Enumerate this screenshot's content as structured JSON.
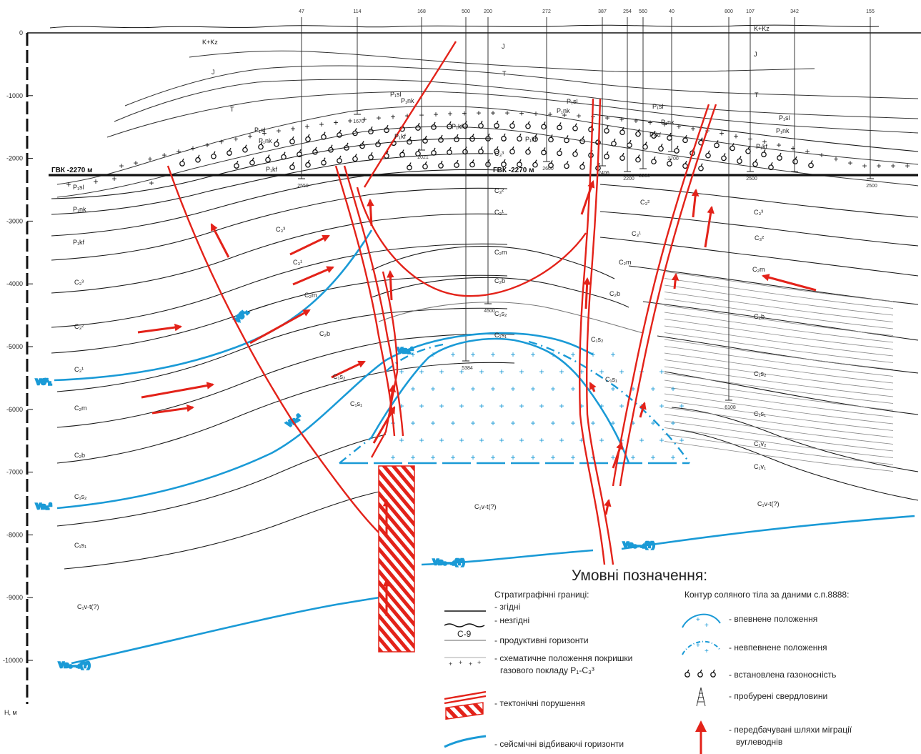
{
  "axis": {
    "depth_unit": "Н, м",
    "ticks": [
      "0",
      "-1000",
      "-2000",
      "-3000",
      "-4000",
      "-5000",
      "-6000",
      "-7000",
      "-8000",
      "-9000",
      "-10000"
    ]
  },
  "wells": [
    "47",
    "114",
    "168",
    "500",
    "200",
    "272",
    "387",
    "254",
    "560",
    "40",
    "800",
    "107",
    "342",
    "155"
  ],
  "well_bottoms": [
    "2550",
    "1670",
    "2021",
    "5384",
    "4500",
    "2600",
    "2406",
    "2200",
    "2230",
    "2700",
    "6108",
    "2500",
    "2500"
  ],
  "gvk": {
    "left": "ГВК -2270 м",
    "center": "ГВК -2270 м"
  },
  "strata": {
    "kkz_left": "K+Kz",
    "kkz_right": "K+Kz",
    "j_left": "J",
    "j_center": "J",
    "j_right": "J",
    "t_left": "T",
    "t_center": "T",
    "t_right": "T",
    "p1sl_a": "P₁sl",
    "p1nk_a": "P₁nk",
    "p1kf_a": "P₁kf",
    "p1sl_b": "P₁sl",
    "p1nk_b": "P₁nk",
    "p1kf_b": "P₁kf",
    "p1sl_c": "P₁sl",
    "p1nk_c": "P₁nk",
    "p1kf_c": "P₁kf",
    "p1sl_d": "P₁sl",
    "p1nk_d": "P₁nk",
    "p1kf_d": "P₁kf",
    "p1sl_e": "P₁sl",
    "p1nk_e": "P₁nk",
    "p1kf_e": "P₁kf",
    "p1sl_f": "P₁sl",
    "p1nk_f": "P₁nk",
    "p1sl_g": "P₁sl",
    "c3_1": "C₃³",
    "c3_2": "C₃²",
    "c3_3": "C₃¹",
    "c2m_l": "C₂m",
    "c2b_l": "C₂b",
    "c1s2_l": "C₁s₂",
    "c1s1_l": "C₁s₁",
    "c1vt_l": "C₁v-t(?)",
    "c3_3m": "C₃³",
    "c3_2m": "C₃²",
    "c3_1m": "C₃¹",
    "c2m_m": "C₂m",
    "c2b_m": "C₂b",
    "c1s2_m": "C₁s₂",
    "c1s1_m": "C₁s₁",
    "c3_3c": "C₃³",
    "c3_2c": "C₃²",
    "c3_1c": "C₃¹",
    "c2m_c": "C₂m",
    "c2b_c": "C₂b",
    "c1s2_c": "C₁s₂",
    "c1s1_c": "C₁s₁",
    "c1vt_c": "C₁v-t(?)",
    "c3_2r": "C₃²",
    "c3_1r": "C₃¹",
    "c2m_r": "C₂m",
    "c2b_r": "C₂b",
    "c1s2_r": "C₁s₂",
    "c1s1_r": "C₁s₁",
    "c3_3rr": "C₃³",
    "c3_2rr": "C₃²",
    "c3_1rr": "C₃¹",
    "c2m_rr": "C₂m",
    "c2b_rr": "C₂b",
    "c1s2_rr": "C₁s₂",
    "c1s1_rr": "C₁s₁",
    "c1v2_rr": "C₁v₂",
    "c1v1_rr": "C₁v₁",
    "c1vt_rr": "C₁v-t(?)"
  },
  "horizons": {
    "vb1_left": "Vб¹₁",
    "vb1_fault": "Vб¹₁",
    "vb2_left": "Vв₁²",
    "vb2_fault": "Vв₁²",
    "vb2_dome": "Vв₁²",
    "vb34_left": "Vв₃₋₄(?)",
    "vb34_center": "Vв₃₋₄(?)",
    "vb34_right": "Vв₃₋₄(?)"
  },
  "legend": {
    "title": "Умовні позначення:",
    "strat_header": "Стратиграфічні границі:",
    "conformable": "- згідні",
    "unconformable": "- незгідні",
    "c9_label": "С-9",
    "productive": "- продуктивні горизонти",
    "cap_line1": "- схематичне положення покришки",
    "cap_line2": "газового покладу Р₁-С₃³",
    "faults": "- тектонічні порушення",
    "seismic": "- сейсмічні відбиваючі горизонти",
    "salt_header": "Контур соляного тіла за даними с.п.8888:",
    "salt_certain": "- впевнене положення",
    "salt_uncertain": "- невпевнене положення",
    "gas_bearing": "- встановлена газоносність",
    "drilled_wells": "- пробурені свердловини",
    "migration_line1": "- передбачувані шляхи міграції",
    "migration_line2": "вуглеводнів"
  },
  "colors": {
    "fault": "#e32219",
    "horizon": "#1a9ad6",
    "line": "#1a1a1a"
  }
}
